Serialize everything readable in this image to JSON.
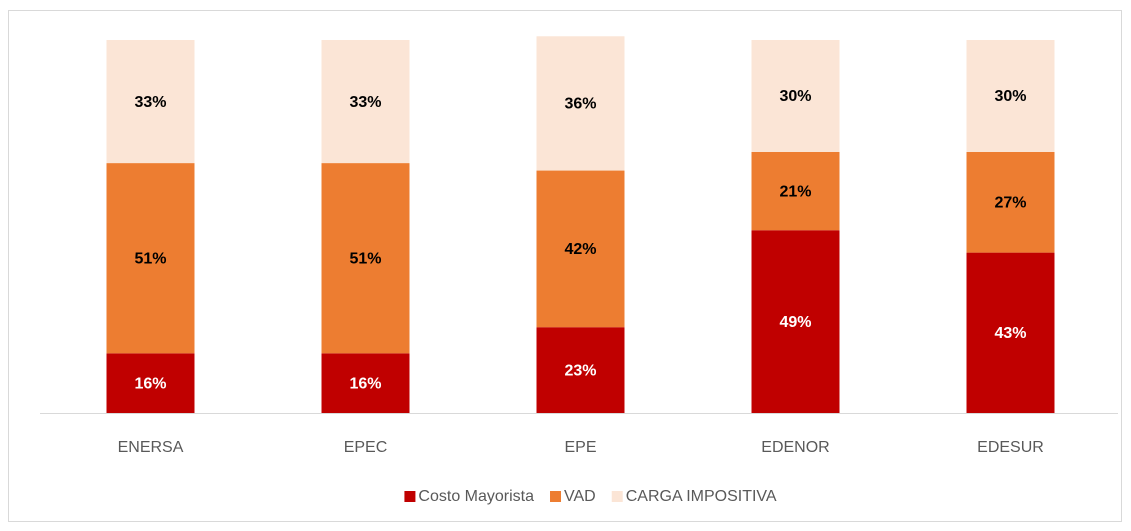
{
  "chart_data": {
    "type": "stacked_bar",
    "categories": [
      "ENERSA",
      "EPEC",
      "EPE",
      "EDENOR",
      "EDESUR"
    ],
    "series": [
      {
        "name": "Costo Mayorista",
        "color": "#c00000",
        "label_color": "#ffffff",
        "values": [
          16,
          16,
          23,
          49,
          43
        ],
        "value_labels": [
          "16%",
          "16%",
          "23%",
          "49%",
          "43%"
        ]
      },
      {
        "name": "VAD",
        "color": "#ed7d31",
        "label_color": "#000000",
        "values": [
          51,
          51,
          42,
          21,
          27
        ],
        "value_labels": [
          "51%",
          "51%",
          "42%",
          "21%",
          "27%"
        ]
      },
      {
        "name": "CARGA IMPOSITIVA",
        "color": "#fbe5d6",
        "label_color": "#000000",
        "values": [
          33,
          33,
          36,
          30,
          30
        ],
        "value_labels": [
          "33%",
          "33%",
          "36%",
          "30%",
          "30%"
        ]
      }
    ],
    "ylim": [
      0,
      100
    ],
    "legend": "bottom"
  }
}
